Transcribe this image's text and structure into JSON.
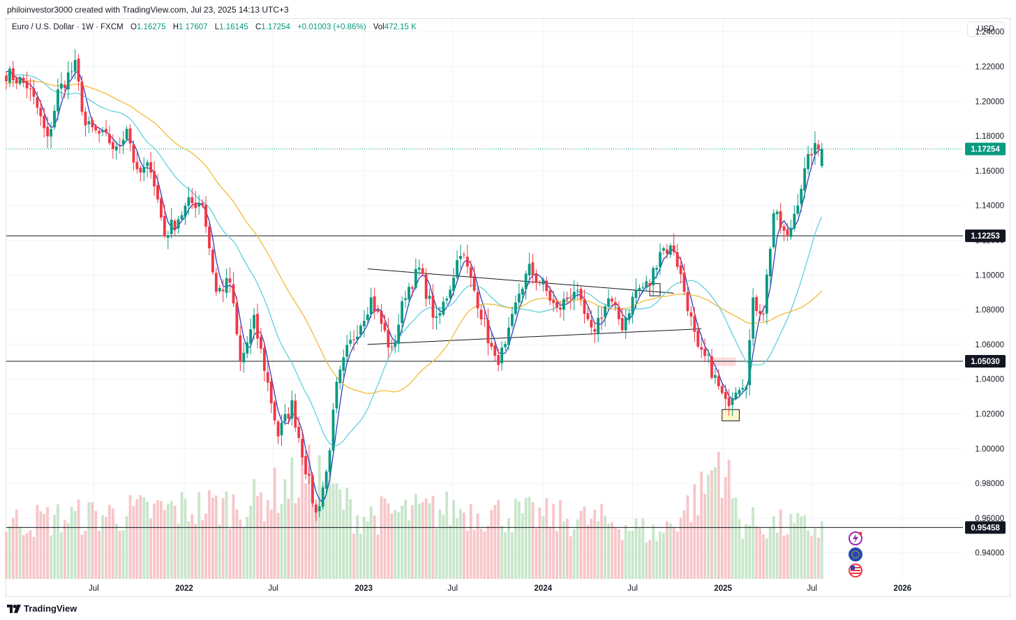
{
  "header": {
    "attribution": "philoinvestor3000 created with TradingView.com, Jul 23, 2025 14:13 UTC+3"
  },
  "legend": {
    "symbol": "Euro / U.S. Dollar · 1W · FXCM",
    "o_label": "O",
    "o_value": "1.16275",
    "h_label": "H",
    "h_value": "1.17607",
    "l_label": "L",
    "l_value": "1.16145",
    "c_label": "C",
    "c_value": "1.17254",
    "change": "+0.01003 (+0.86%)",
    "vol_label": "Vol",
    "vol_value": "472.15 K"
  },
  "currency_button": "USD",
  "footer": {
    "brand": "TradingView"
  },
  "colors": {
    "up": "#089981",
    "down": "#f23645",
    "vol_up": "#c8e6c9",
    "vol_down": "#f7c6c9",
    "ma_fast": "#2a3fbf",
    "ma_mid": "#5fd0dc",
    "ma_slow": "#f5b935",
    "hline": "#131722",
    "last": "#089981"
  },
  "chart_data": {
    "type": "candlestick",
    "title": "Euro / U.S. Dollar · 1W · FXCM",
    "ylim": [
      0.925,
      1.2475
    ],
    "y_ticks": [
      0.94,
      0.96,
      0.98,
      1.0,
      1.02,
      1.04,
      1.06,
      1.08,
      1.1,
      1.12,
      1.14,
      1.16,
      1.18,
      1.2,
      1.22,
      1.24
    ],
    "y_tick_labels": [
      "0.94000",
      "0.96000",
      "0.98000",
      "1.00000",
      "1.02000",
      "1.04000",
      "1.06000",
      "1.08000",
      "1.10000",
      "1.12000",
      "1.14000",
      "1.16000",
      "1.18000",
      "1.20000",
      "1.22000",
      "1.24000"
    ],
    "x_range": [
      "2021-01-04",
      "2026-05-04"
    ],
    "x_ticks": [
      {
        "date": "2021-07-01",
        "label": "Jul",
        "bold": false
      },
      {
        "date": "2022-01-01",
        "label": "2022",
        "bold": true
      },
      {
        "date": "2022-07-01",
        "label": "Jul",
        "bold": false
      },
      {
        "date": "2023-01-01",
        "label": "2023",
        "bold": true
      },
      {
        "date": "2023-07-01",
        "label": "Jul",
        "bold": false
      },
      {
        "date": "2024-01-01",
        "label": "2024",
        "bold": true
      },
      {
        "date": "2024-07-01",
        "label": "Jul",
        "bold": false
      },
      {
        "date": "2025-01-01",
        "label": "2025",
        "bold": true
      },
      {
        "date": "2025-07-01",
        "label": "Jul",
        "bold": false
      },
      {
        "date": "2026-01-01",
        "label": "2026",
        "bold": true
      }
    ],
    "close_anchors": [
      [
        "2021-01-04",
        1.216
      ],
      [
        "2021-01-25",
        1.213
      ],
      [
        "2021-02-15",
        1.209
      ],
      [
        "2021-03-08",
        1.196
      ],
      [
        "2021-03-29",
        1.177
      ],
      [
        "2021-04-19",
        1.205
      ],
      [
        "2021-05-10",
        1.215
      ],
      [
        "2021-05-24",
        1.22
      ],
      [
        "2021-06-14",
        1.186
      ],
      [
        "2021-07-05",
        1.182
      ],
      [
        "2021-08-02",
        1.177
      ],
      [
        "2021-08-16",
        1.171
      ],
      [
        "2021-09-06",
        1.186
      ],
      [
        "2021-09-27",
        1.157
      ],
      [
        "2021-10-25",
        1.163
      ],
      [
        "2021-11-22",
        1.123
      ],
      [
        "2022-01-10",
        1.141
      ],
      [
        "2022-02-07",
        1.142
      ],
      [
        "2022-03-07",
        1.09
      ],
      [
        "2022-04-04",
        1.096
      ],
      [
        "2022-04-25",
        1.049
      ],
      [
        "2022-05-23",
        1.073
      ],
      [
        "2022-06-13",
        1.047
      ],
      [
        "2022-07-11",
        1.008
      ],
      [
        "2022-08-08",
        1.025
      ],
      [
        "2022-08-29",
        0.998
      ],
      [
        "2022-09-26",
        0.962
      ],
      [
        "2022-10-17",
        0.986
      ],
      [
        "2022-11-07",
        1.035
      ],
      [
        "2022-11-28",
        1.056
      ],
      [
        "2023-01-16",
        1.086
      ],
      [
        "2023-02-06",
        1.072
      ],
      [
        "2023-02-27",
        1.055
      ],
      [
        "2023-03-27",
        1.09
      ],
      [
        "2023-04-24",
        1.103
      ],
      [
        "2023-05-29",
        1.072
      ],
      [
        "2023-06-26",
        1.094
      ],
      [
        "2023-07-17",
        1.115
      ],
      [
        "2023-08-21",
        1.085
      ],
      [
        "2023-09-25",
        1.05
      ],
      [
        "2023-10-16",
        1.057
      ],
      [
        "2023-11-13",
        1.09
      ],
      [
        "2023-12-04",
        1.103
      ],
      [
        "2024-01-01",
        1.094
      ],
      [
        "2024-01-29",
        1.079
      ],
      [
        "2024-03-04",
        1.092
      ],
      [
        "2024-04-08",
        1.066
      ],
      [
        "2024-05-13",
        1.086
      ],
      [
        "2024-06-10",
        1.071
      ],
      [
        "2024-07-08",
        1.091
      ],
      [
        "2024-08-05",
        1.095
      ],
      [
        "2024-08-26",
        1.115
      ],
      [
        "2024-09-23",
        1.115
      ],
      [
        "2024-10-21",
        1.083
      ],
      [
        "2024-11-11",
        1.055
      ],
      [
        "2024-12-02",
        1.05
      ],
      [
        "2025-01-06",
        1.025
      ],
      [
        "2025-01-27",
        1.036
      ],
      [
        "2025-02-17",
        1.04
      ],
      [
        "2025-03-03",
        1.083
      ],
      [
        "2025-03-24",
        1.08
      ],
      [
        "2025-04-14",
        1.136
      ],
      [
        "2025-05-12",
        1.12
      ],
      [
        "2025-06-09",
        1.152
      ],
      [
        "2025-06-30",
        1.172
      ],
      [
        "2025-07-21",
        1.1725
      ]
    ],
    "volume_profile": [
      [
        0,
        0.45
      ],
      [
        0.3,
        0.6
      ],
      [
        0.38,
        0.85
      ],
      [
        0.43,
        0.5
      ],
      [
        0.55,
        0.55
      ],
      [
        0.75,
        0.45
      ],
      [
        0.8,
        0.35
      ],
      [
        0.855,
        0.7
      ],
      [
        0.875,
        1.0
      ],
      [
        0.9,
        0.45
      ],
      [
        1,
        0.4
      ]
    ],
    "moving_averages": [
      {
        "name": "MA fast",
        "color_key": "ma_fast",
        "period": 4
      },
      {
        "name": "MA mid",
        "color_key": "ma_mid",
        "period": 20
      },
      {
        "name": "MA slow",
        "color_key": "ma_slow",
        "period": 40
      }
    ],
    "horizontal_lines": [
      {
        "price": 1.12253,
        "label": "1.12253"
      },
      {
        "price": 1.0503,
        "label": "1.05030"
      },
      {
        "price": 0.95458,
        "label": "0.95458"
      }
    ],
    "last_price": {
      "price": 1.17254,
      "label": "1.17254"
    },
    "trendlines": [
      {
        "from": [
          "2023-01-09",
          1.1035
        ],
        "to": [
          "2024-09-23",
          1.0895
        ]
      },
      {
        "from": [
          "2023-01-09",
          1.06
        ],
        "to": [
          "2024-11-18",
          1.069
        ]
      }
    ],
    "zones": [
      {
        "type": "supply",
        "from": [
          "2024-12-02",
          1.0525
        ],
        "to": [
          "2025-01-27",
          1.0475
        ]
      },
      {
        "type": "demand",
        "from": [
          "2024-12-30",
          1.0225
        ],
        "to": [
          "2025-02-03",
          1.016
        ]
      },
      {
        "type": "box",
        "from": [
          "2024-08-05",
          1.095
        ],
        "to": [
          "2024-08-26",
          1.088
        ]
      }
    ]
  }
}
